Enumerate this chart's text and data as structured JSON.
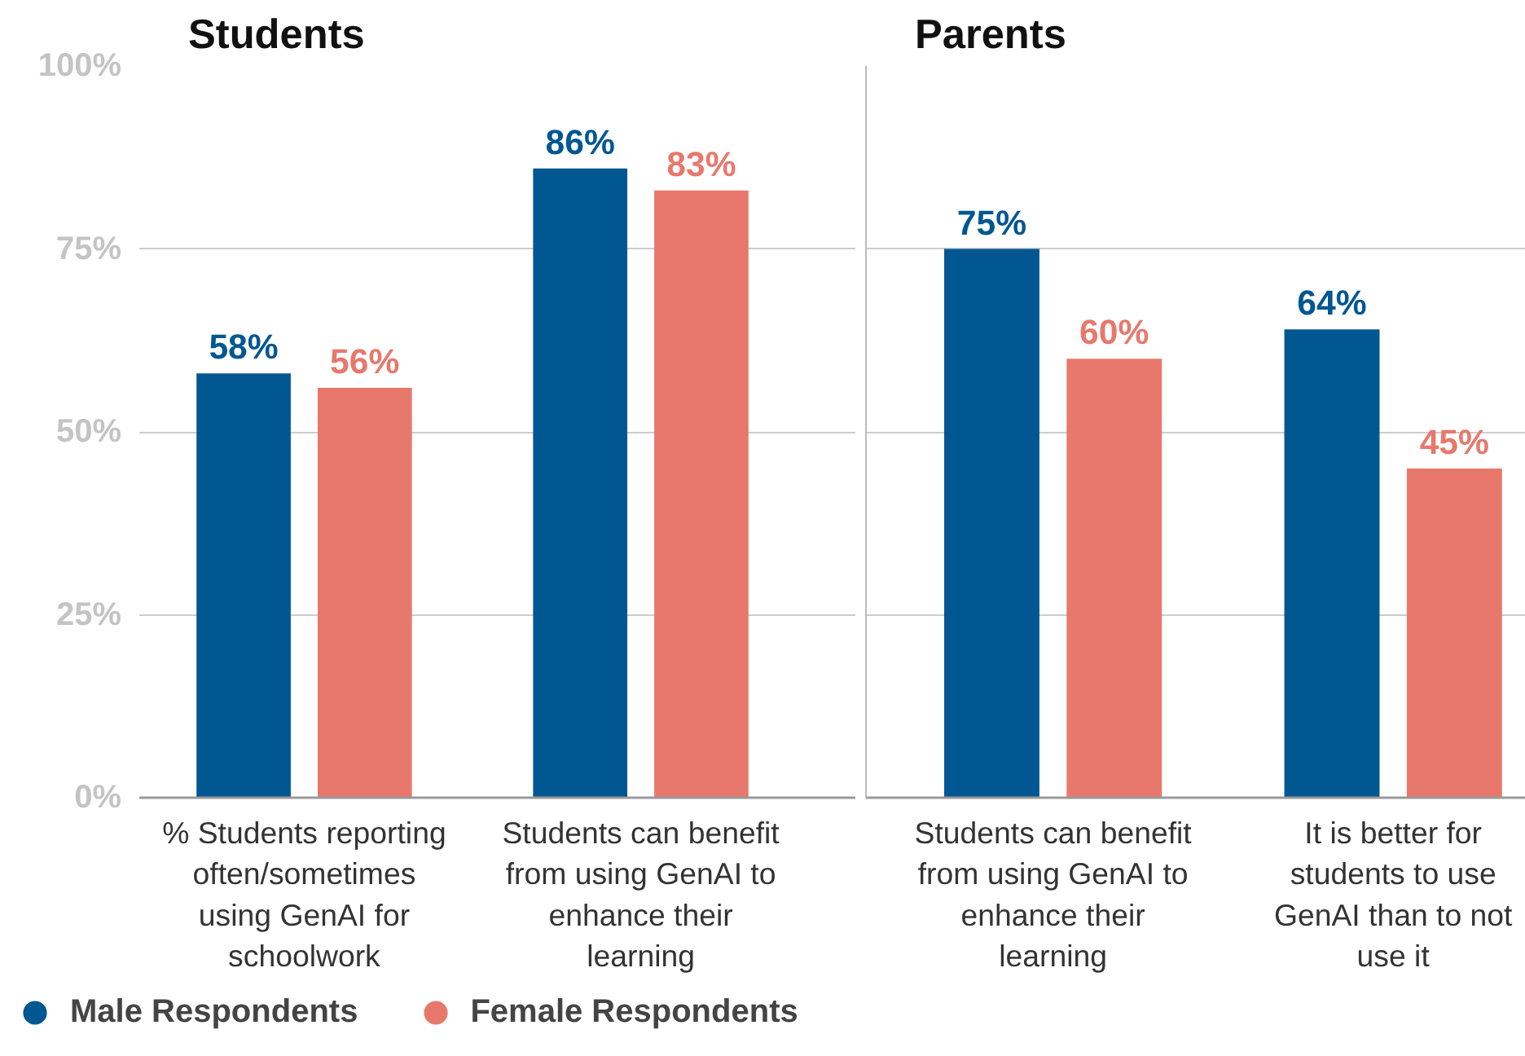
{
  "chart_data": [
    {
      "type": "bar",
      "title": "Students",
      "categories": [
        "% Students reporting often/sometimes using GenAI for schoolwork",
        "Students can benefit from using GenAI to enhance their learning"
      ],
      "series": [
        {
          "name": "Male Respondents",
          "color": "#005792",
          "values": [
            58,
            86
          ],
          "value_labels": [
            "58%",
            "86%"
          ]
        },
        {
          "name": "Female Respondents",
          "color": "#e8786c",
          "values": [
            56,
            83
          ],
          "value_labels": [
            "56%",
            "83%"
          ]
        }
      ],
      "ylim": [
        0,
        100
      ],
      "yticks": [
        {
          "value": 0,
          "label": "0%"
        },
        {
          "value": 25,
          "label": "25%"
        },
        {
          "value": 50,
          "label": "50%"
        },
        {
          "value": 75,
          "label": "75%"
        },
        {
          "value": 100,
          "label": "100%"
        }
      ],
      "grid": "y",
      "legend": "bottom"
    },
    {
      "type": "bar",
      "title": "Parents",
      "categories": [
        "Students can benefit from using GenAI to enhance their learning",
        "It is better for students to use GenAI than to not use it"
      ],
      "series": [
        {
          "color": "#005792",
          "values": [
            75,
            64
          ],
          "value_labels": [
            "75%",
            "64%"
          ]
        },
        {
          "color": "#e8786c",
          "values": [
            60,
            45
          ],
          "value_labels": [
            "60%",
            "45%"
          ]
        }
      ],
      "ylim": [
        0,
        100
      ],
      "yticks": [
        {
          "value": 0,
          "label": "0%"
        },
        {
          "value": 25,
          "label": "25%"
        },
        {
          "value": 50,
          "label": "50%"
        },
        {
          "value": 75,
          "label": "75%"
        },
        {
          "value": 100,
          "label": "100%"
        }
      ],
      "grid": "y",
      "tick_labels": "x"
    }
  ]
}
